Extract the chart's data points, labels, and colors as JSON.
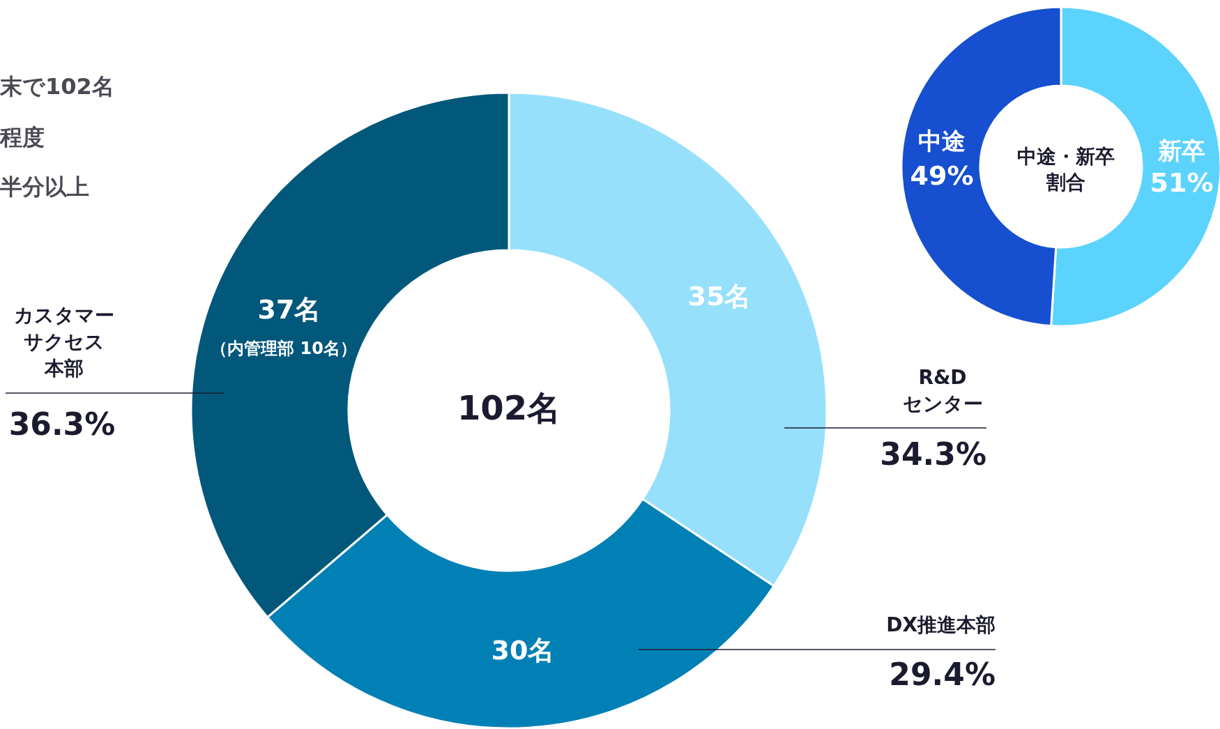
{
  "chart_data": [
    {
      "type": "donut",
      "categories": [
        "R&D\nセンター",
        "DX推進本部",
        "カスタマーサクセス本部"
      ],
      "values": [
        35,
        30,
        37
      ],
      "colors": [
        "#97e0fc",
        "#0080b5",
        "#02587a"
      ],
      "value_labels": [
        "35名",
        "30名",
        "37名"
      ],
      "annotations": [
        "102名",
        "（内管理部 10名）",
        {
          "text": "34.3%",
          "x": "R&D\nセンター"
        },
        {
          "text": "29.4%",
          "x": "DX推進本部"
        },
        {
          "text": "36.3%",
          "x": "カスタマーサクセス本部"
        },
        "末で102名",
        "程度",
        "半分以上"
      ]
    },
    {
      "type": "donut",
      "title": "中途・新卒割合",
      "categories": [
        "新卒",
        "中途"
      ],
      "values": [
        51,
        49
      ],
      "colors": [
        "#5bd3fd",
        "#164fcf"
      ],
      "value_labels": [
        "51%",
        "49%"
      ]
    }
  ]
}
